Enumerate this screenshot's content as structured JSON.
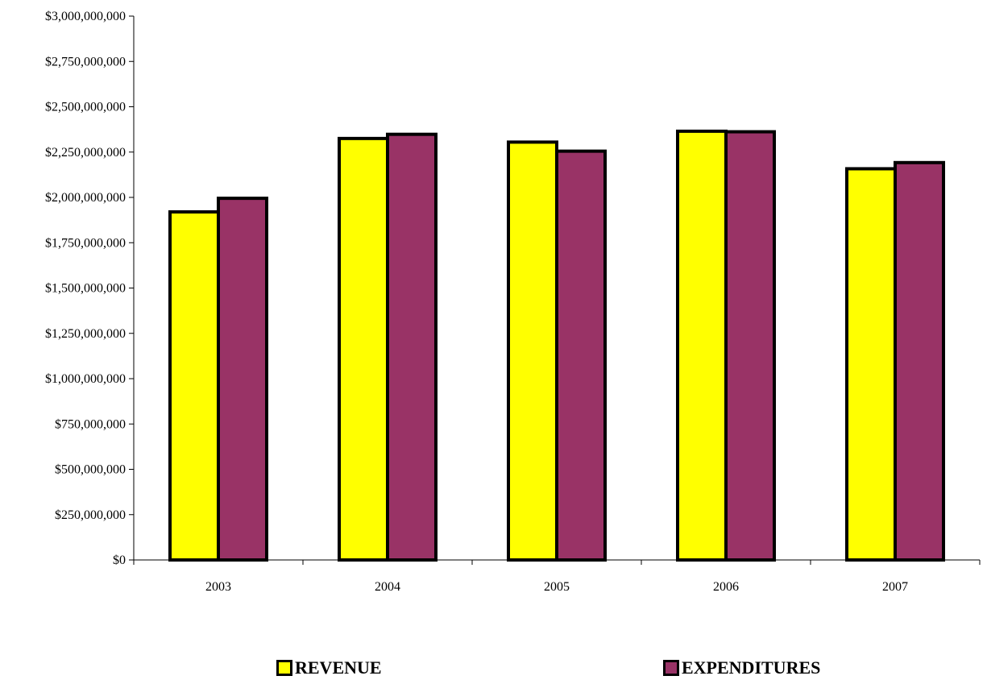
{
  "chart_data": {
    "type": "bar",
    "title": "",
    "xlabel": "",
    "ylabel": "",
    "categories": [
      "2003",
      "2004",
      "2005",
      "2006",
      "2007"
    ],
    "series": [
      {
        "name": "REVENUE",
        "color": "#ffff00",
        "values": [
          1920000000,
          2325000000,
          2305000000,
          2365000000,
          2158000000
        ]
      },
      {
        "name": "EXPENDITURES",
        "color": "#993366",
        "values": [
          1995000000,
          2348000000,
          2255000000,
          2362000000,
          2192000000
        ]
      }
    ],
    "ylim": [
      0,
      3000000000
    ],
    "yticks": [
      "$0",
      "$250,000,000",
      "$500,000,000",
      "$750,000,000",
      "$1,000,000,000",
      "$1,250,000,000",
      "$1,500,000,000",
      "$1,750,000,000",
      "$2,000,000,000",
      "$2,250,000,000",
      "$2,500,000,000",
      "$2,750,000,000",
      "$3,000,000,000"
    ],
    "grid": false,
    "legend_position": "bottom"
  }
}
